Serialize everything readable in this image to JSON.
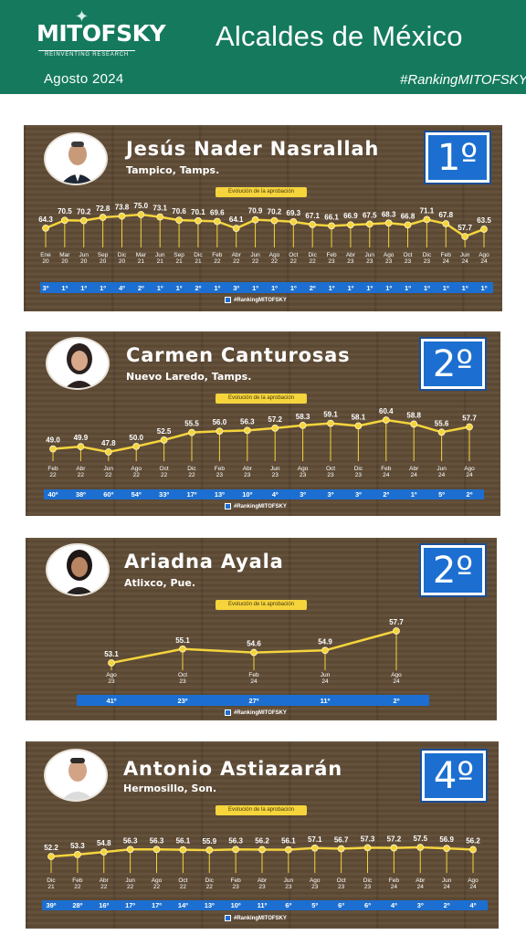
{
  "header": {
    "logo": "MITOFSKY",
    "tagline": "REINVENTING RESEARCH",
    "date": "Agosto 2024",
    "title": "Alcaldes de México",
    "hashtag": "#RankingMITOFSKY"
  },
  "colors": {
    "header_bg": "#157a5d",
    "line": "#f5d43c",
    "rank_bar": "#1c6fd0",
    "wood": "#5e4b35"
  },
  "panels": [
    {
      "name": "Jesús Nader Nasrallah",
      "city": "Tampico, Tamps.",
      "rank": "1º",
      "evolution_label": "Evolución de la aprobación",
      "hashtag": "#RankingMITOFSKY"
    },
    {
      "name": "Carmen Canturosas",
      "city": "Nuevo Laredo, Tamps.",
      "rank": "2º",
      "evolution_label": "Evolución de la aprobación",
      "hashtag": "#RankingMITOFSKY"
    },
    {
      "name": "Ariadna Ayala",
      "city": "Atlixco, Pue.",
      "rank": "2º",
      "evolution_label": "Evolución de la aprobación",
      "hashtag": "#RankingMITOFSKY"
    },
    {
      "name": "Antonio Astiazarán",
      "city": "Hermosillo, Son.",
      "rank": "4º",
      "evolution_label": "Evolución de la aprobación",
      "hashtag": "#RankingMITOFSKY"
    }
  ],
  "chart_data": [
    {
      "type": "line",
      "categories": [
        [
          "Ene",
          "20"
        ],
        [
          "Mar",
          "20"
        ],
        [
          "Jun",
          "20"
        ],
        [
          "Sep",
          "20"
        ],
        [
          "Dic",
          "20"
        ],
        [
          "Mar",
          "21"
        ],
        [
          "Jun",
          "21"
        ],
        [
          "Sep",
          "21"
        ],
        [
          "Dic",
          "21"
        ],
        [
          "Feb",
          "22"
        ],
        [
          "Abr",
          "22"
        ],
        [
          "Jun",
          "22"
        ],
        [
          "Ago",
          "22"
        ],
        [
          "Oct",
          "22"
        ],
        [
          "Dic",
          "22"
        ],
        [
          "Feb",
          "23"
        ],
        [
          "Abr",
          "23"
        ],
        [
          "Jun",
          "23"
        ],
        [
          "Ago",
          "23"
        ],
        [
          "Oct",
          "23"
        ],
        [
          "Dic",
          "23"
        ],
        [
          "Feb",
          "24"
        ],
        [
          "Jun",
          "24"
        ],
        [
          "Ago",
          "24"
        ]
      ],
      "values": [
        64.3,
        70.5,
        70.2,
        72.8,
        73.8,
        75.0,
        73.1,
        70.6,
        70.1,
        69.6,
        64.1,
        70.9,
        70.2,
        69.3,
        67.1,
        66.1,
        66.9,
        67.5,
        68.3,
        66.8,
        71.1,
        67.8,
        57.7,
        63.5
      ],
      "labels": [
        "64.3",
        "70.5",
        "70.2",
        "72.8",
        "73.8",
        "75.0",
        "73.1",
        "70.6",
        "70.1",
        "69.6",
        "64.1",
        "70.9",
        "70.2",
        "69.3",
        "67.1",
        "66.1",
        "66.9",
        "67.5",
        "68.3",
        "66.8",
        "71.1",
        "67.8",
        "57.7",
        "63.5"
      ],
      "ranks": [
        "3º",
        "1º",
        "1º",
        "1º",
        "4º",
        "2º",
        "1º",
        "1º",
        "2º",
        "1º",
        "3º",
        "1º",
        "1º",
        "1º",
        "2º",
        "1º",
        "1º",
        "1º",
        "1º",
        "1º",
        "1º",
        "1º",
        "1º",
        "1º"
      ],
      "ylim": [
        50,
        80
      ]
    },
    {
      "type": "line",
      "categories": [
        [
          "Feb",
          "22"
        ],
        [
          "Abr",
          "22"
        ],
        [
          "Jun",
          "22"
        ],
        [
          "Ago",
          "22"
        ],
        [
          "Oct",
          "22"
        ],
        [
          "Dic",
          "22"
        ],
        [
          "Feb",
          "23"
        ],
        [
          "Abr",
          "23"
        ],
        [
          "Jun",
          "23"
        ],
        [
          "Ago",
          "23"
        ],
        [
          "Oct",
          "23"
        ],
        [
          "Dic",
          "23"
        ],
        [
          "Feb",
          "24"
        ],
        [
          "Abr",
          "24"
        ],
        [
          "Jun",
          "24"
        ],
        [
          "Ago",
          "24"
        ]
      ],
      "values": [
        49.0,
        49.9,
        47.8,
        50.0,
        52.5,
        55.5,
        56.0,
        56.3,
        57.2,
        58.3,
        59.1,
        58.1,
        60.4,
        58.8,
        55.6,
        57.7
      ],
      "labels": [
        "49.0",
        "49.9",
        "47.8",
        "50.0",
        "52.5",
        "55.5",
        "56.0",
        "56.3",
        "57.2",
        "58.3",
        "59.1",
        "58.1",
        "60.4",
        "58.8",
        "55.6",
        "57.7"
      ],
      "ranks": [
        "40º",
        "38º",
        "60º",
        "54º",
        "33º",
        "17º",
        "13º",
        "10º",
        "4º",
        "3º",
        "3º",
        "3º",
        "2º",
        "1º",
        "5º",
        "2º"
      ],
      "ylim": [
        40,
        70
      ]
    },
    {
      "type": "line",
      "categories": [
        [
          "Ago",
          "23"
        ],
        [
          "Oct",
          "23"
        ],
        [
          "Feb",
          "24"
        ],
        [
          "Jun",
          "24"
        ],
        [
          "Ago",
          "24"
        ]
      ],
      "values": [
        53.1,
        55.1,
        54.6,
        54.9,
        57.7
      ],
      "labels": [
        "53.1",
        "55.1",
        "54.6",
        "54.9",
        "57.7"
      ],
      "ranks": [
        "41º",
        "23º",
        "27º",
        "11º",
        "2º"
      ],
      "ylim": [
        40,
        70
      ]
    },
    {
      "type": "line",
      "categories": [
        [
          "Dic",
          "21"
        ],
        [
          "Feb",
          "22"
        ],
        [
          "Abr",
          "22"
        ],
        [
          "Jun",
          "22"
        ],
        [
          "Ago",
          "22"
        ],
        [
          "Oct",
          "22"
        ],
        [
          "Dic",
          "22"
        ],
        [
          "Feb",
          "23"
        ],
        [
          "Abr",
          "23"
        ],
        [
          "Jun",
          "23"
        ],
        [
          "Ago",
          "23"
        ],
        [
          "Oct",
          "23"
        ],
        [
          "Dic",
          "23"
        ],
        [
          "Feb",
          "24"
        ],
        [
          "Abr",
          "24"
        ],
        [
          "Jun",
          "24"
        ],
        [
          "Ago",
          "24"
        ]
      ],
      "values": [
        52.2,
        53.3,
        54.8,
        56.3,
        56.3,
        56.1,
        55.9,
        56.3,
        56.2,
        56.1,
        57.1,
        56.7,
        57.3,
        57.2,
        57.5,
        56.9,
        56.2
      ],
      "labels": [
        "52.2",
        "53.3",
        "54.8",
        "56.3",
        "56.3",
        "56.1",
        "55.9",
        "56.3",
        "56.2",
        "56.1",
        "57.1",
        "56.7",
        "57.3",
        "57.2",
        "57.5",
        "56.9",
        "56.2"
      ],
      "ranks": [
        "39º",
        "28º",
        "16º",
        "17º",
        "17º",
        "14º",
        "13º",
        "10º",
        "11º",
        "6º",
        "5º",
        "6º",
        "6º",
        "4º",
        "3º",
        "2º",
        "4º"
      ],
      "ylim": [
        40,
        70
      ]
    }
  ]
}
